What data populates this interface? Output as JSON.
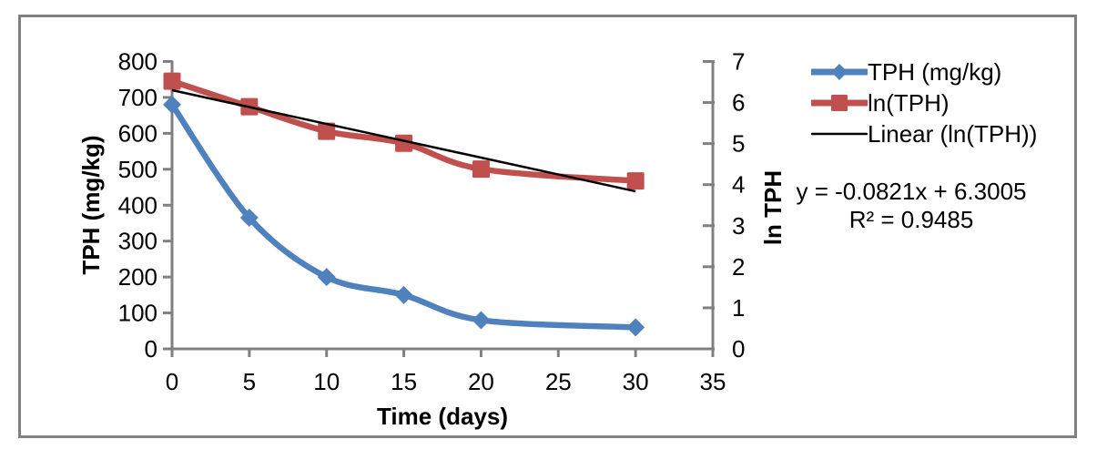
{
  "window": {
    "background": "#ffffff",
    "frame_border_color": "#808080"
  },
  "chart_data": {
    "type": "line",
    "title": "",
    "xlabel": "Time (days)",
    "ylabel_left": "TPH (mg/kg)",
    "ylabel_right": "ln TPH",
    "x": [
      0,
      5,
      10,
      15,
      20,
      30
    ],
    "series": [
      {
        "name": "TPH (mg/kg)",
        "axis": "left",
        "color": "#4F81BD",
        "marker": "diamond",
        "smooth": true,
        "values": [
          680,
          365,
          200,
          150,
          80,
          60
        ]
      },
      {
        "name": "ln(TPH)",
        "axis": "right",
        "color": "#C0504D",
        "marker": "square",
        "smooth": true,
        "values": [
          6.52,
          5.9,
          5.3,
          5.01,
          4.38,
          4.09
        ]
      }
    ],
    "trendline": {
      "name": "Linear (ln(TPH))",
      "color": "#000000",
      "axis": "right",
      "slope": -0.0821,
      "intercept": 6.3005,
      "x_start": 0,
      "x_end": 30
    },
    "xlim": [
      0,
      35
    ],
    "ylim_left": [
      0,
      800
    ],
    "ylim_right": [
      0,
      7
    ],
    "x_ticks": [
      0,
      5,
      10,
      15,
      20,
      25,
      30,
      35
    ],
    "y_ticks_left": [
      0,
      100,
      200,
      300,
      400,
      500,
      600,
      700,
      800
    ],
    "y_ticks_right": [
      0,
      1,
      2,
      3,
      4,
      5,
      6,
      7
    ],
    "grid": false,
    "legend_position": "top-right",
    "axis_color": "#808080",
    "annotation": {
      "equation": "y = -0.0821x + 6.3005",
      "r_squared": "R² = 0.9485"
    }
  }
}
